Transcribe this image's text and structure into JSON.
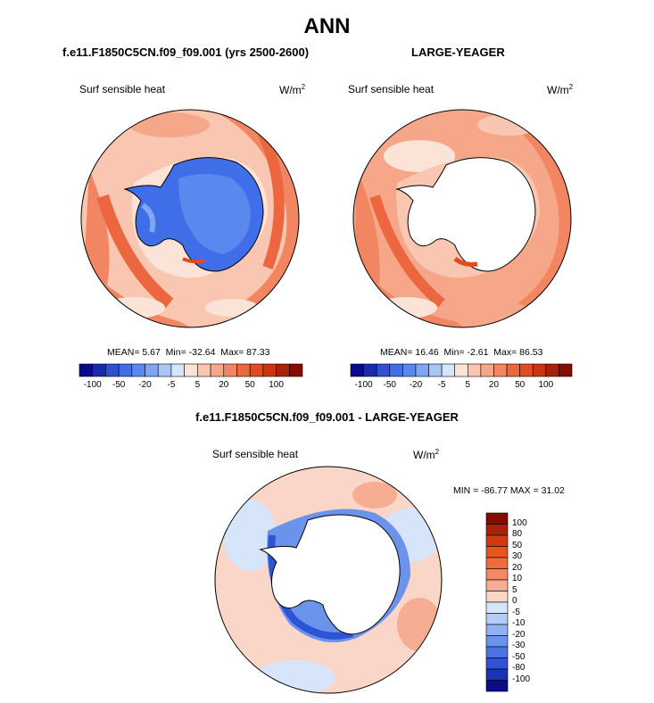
{
  "title": "ANN",
  "panel_left": {
    "case": "f.e11.F1850C5CN.f09_f09.001 (yrs 2500-2600)",
    "variable": "Surf sensible heat",
    "units": "W/m",
    "units_sup": "2",
    "mean_label": "MEAN=",
    "mean": "5.67",
    "min_label": "Min=",
    "min": "-32.64",
    "max_label": "Max=",
    "max": "87.33"
  },
  "panel_right": {
    "case": "LARGE-YEAGER",
    "variable": "Surf sensible heat",
    "units": "W/m",
    "units_sup": "2",
    "mean_label": "MEAN=",
    "mean": "16.46",
    "min_label": "Min=",
    "min": "-2.61",
    "max_label": "Max=",
    "max": "86.53"
  },
  "panel_diff": {
    "case": "f.e11.F1850C5CN.f09_f09.001 - LARGE-YEAGER",
    "variable": "Surf sensible heat",
    "units": "W/m",
    "units_sup": "2",
    "minmax": "MIN = -86.77 MAX =  31.02"
  },
  "colorbar_top": {
    "ticks": [
      "-100",
      "-50",
      "-20",
      "-5",
      "5",
      "20",
      "50",
      "100"
    ],
    "colors": [
      "#0a0a8c",
      "#1a2ab0",
      "#2e4fd6",
      "#3f6ee8",
      "#5a88ee",
      "#7ea6f2",
      "#a9c6f5",
      "#d6e5f9",
      "#fbe3d8",
      "#f9c7b1",
      "#f6a78a",
      "#f28663",
      "#ec6640",
      "#e34a22",
      "#cc3310",
      "#a82108",
      "#850c00"
    ]
  },
  "colorbar_diff": {
    "ticks": [
      "100",
      "80",
      "50",
      "30",
      "20",
      "10",
      "5",
      "0",
      "-5",
      "-10",
      "-20",
      "-30",
      "-50",
      "-80",
      "-100"
    ],
    "colors": [
      "#850c00",
      "#a82108",
      "#d43a12",
      "#e8531f",
      "#f06b3e",
      "#f28a66",
      "#f6ad92",
      "#f9d6c8",
      "#d6e5f9",
      "#b3cdf6",
      "#8fb2f2",
      "#6b93ec",
      "#4b73e3",
      "#2d54d4",
      "#1a35b4",
      "#0a0a8c"
    ]
  }
}
